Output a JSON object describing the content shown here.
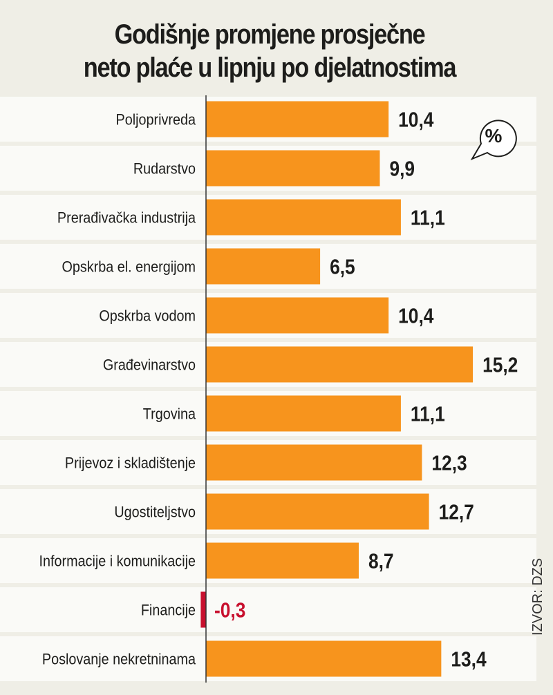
{
  "chart_data": {
    "type": "bar",
    "orientation": "horizontal",
    "title": "Godišnje promjene prosječne neto plaće u lipnju po djelatnostima",
    "title_lines": [
      "Godišnje promjene prosječne",
      "neto plaće u lipnju po djelatnostima"
    ],
    "unit_badge": "%",
    "source": "IZVOR: DZS",
    "categories": [
      "Poljoprivreda",
      "Rudarstvo",
      "Prerađivačka industrija",
      "Opskrba el. energijom",
      "Opskrba vodom",
      "Građevinarstvo",
      "Trgovina",
      "Prijevoz i skladištenje",
      "Ugostiteljstvo",
      "Informacije i komunikacije",
      "Financije",
      "Poslovanje nekretninama"
    ],
    "values": [
      10.4,
      9.9,
      11.1,
      6.5,
      10.4,
      15.2,
      11.1,
      12.3,
      12.7,
      8.7,
      -0.3,
      13.4
    ],
    "value_labels": [
      "10,4",
      "9,9",
      "11,1",
      "6,5",
      "10,4",
      "15,2",
      "11,1",
      "12,3",
      "12,7",
      "8,7",
      "-0,3",
      "13,4"
    ],
    "xlim": [
      -0.6,
      15.2
    ],
    "grid": false,
    "colors": {
      "positive": "#f7941d",
      "negative": "#c8102e",
      "text": "#1d1d1b",
      "background": "#efeee6",
      "row": "#fafaf7"
    }
  }
}
